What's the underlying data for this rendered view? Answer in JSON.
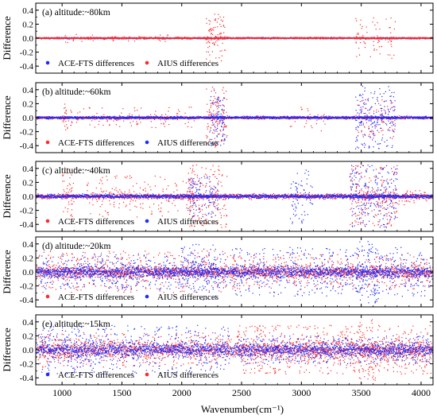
{
  "chart_data": {
    "type": "scatter",
    "xlabel": "Wavenumber(cm⁻¹)",
    "ylabel": "Difference",
    "xlim": [
      780,
      4100
    ],
    "ylim": [
      -0.5,
      0.5
    ],
    "x_ticks": [
      "1000",
      "1500",
      "2000",
      "2500",
      "3000",
      "3500",
      "4000"
    ],
    "y_ticks": [
      "0.4",
      "0.2",
      "0.0",
      "-0.2",
      "-0.4"
    ],
    "colors": {
      "red": "#ff2a2a",
      "blue": "#1e2bff"
    },
    "panels": [
      {
        "label": "(a) altitude:~80km",
        "front": "red",
        "legend": [
          {
            "name": "ACE-FTS differences",
            "color": "blue"
          },
          {
            "name": "AIUS differences",
            "color": "red"
          }
        ],
        "red_band_amp": 0.018,
        "blue_band_amp": 0.015,
        "features": [
          {
            "x": [
              1020,
              1060
            ],
            "color": "red",
            "level": 0.08,
            "density": 0.4
          },
          {
            "x": [
              2200,
              2360
            ],
            "color": "red",
            "level": 0.35,
            "density": 2.5
          },
          {
            "x": [
              3450,
              3780
            ],
            "color": "red",
            "level": 0.3,
            "density": 0.9
          },
          {
            "x": [
              1000,
              2100
            ],
            "color": "red",
            "level": 0.06,
            "density": 0.15
          }
        ]
      },
      {
        "label": "(b) altitude:~60km",
        "front": "blue",
        "legend": [
          {
            "name": "ACE-FTS differences",
            "color": "red"
          },
          {
            "name": "AIUS differences",
            "color": "blue"
          }
        ],
        "red_band_amp": 0.03,
        "blue_band_amp": 0.025,
        "features": [
          {
            "x": [
              1000,
              1080
            ],
            "color": "red",
            "level": 0.2,
            "density": 2.0
          },
          {
            "x": [
              2200,
              2380
            ],
            "color": "red",
            "level": 0.45,
            "density": 3.0
          },
          {
            "x": [
              2230,
              2360
            ],
            "color": "blue",
            "level": 0.4,
            "density": 3.0
          },
          {
            "x": [
              3450,
              3780
            ],
            "color": "blue",
            "level": 0.45,
            "density": 2.5
          },
          {
            "x": [
              3450,
              3780
            ],
            "color": "red",
            "level": 0.3,
            "density": 1.2
          },
          {
            "x": [
              1100,
              2100
            ],
            "color": "red",
            "level": 0.15,
            "density": 0.5
          },
          {
            "x": [
              2900,
              3200
            ],
            "color": "red",
            "level": 0.2,
            "density": 0.4
          }
        ]
      },
      {
        "label": "(c) altitude:~40km",
        "front": "blue",
        "legend": [
          {
            "name": "ACE-FTS differences",
            "color": "red"
          },
          {
            "name": "AIUS differences",
            "color": "blue"
          }
        ],
        "red_band_amp": 0.05,
        "blue_band_amp": 0.04,
        "features": [
          {
            "x": [
              1000,
              1100
            ],
            "color": "red",
            "level": 0.4,
            "density": 2.5
          },
          {
            "x": [
              1200,
              2100
            ],
            "color": "red",
            "level": 0.3,
            "density": 0.9
          },
          {
            "x": [
              2050,
              2380
            ],
            "color": "red",
            "level": 0.45,
            "density": 2.5
          },
          {
            "x": [
              2050,
              2300
            ],
            "color": "blue",
            "level": 0.3,
            "density": 2.0
          },
          {
            "x": [
              2900,
              3100
            ],
            "color": "blue",
            "level": 0.4,
            "density": 1.5
          },
          {
            "x": [
              3400,
              3800
            ],
            "color": "red",
            "level": 0.45,
            "density": 2.5
          },
          {
            "x": [
              3400,
              3800
            ],
            "color": "blue",
            "level": 0.45,
            "density": 2.5
          },
          {
            "x": [
              3800,
              4080
            ],
            "color": "red",
            "level": 0.12,
            "density": 0.8
          }
        ]
      },
      {
        "label": "(d) altitude:~20km",
        "front": "blue",
        "legend": [
          {
            "name": "ACE-FTS differences",
            "color": "red"
          },
          {
            "name": "AIUS differences",
            "color": "blue"
          }
        ],
        "red_band_amp": 0.12,
        "blue_band_amp": 0.12,
        "features": [
          {
            "x": [
              800,
              2380
            ],
            "color": "blue",
            "level": 0.25,
            "density": 1.5
          },
          {
            "x": [
              800,
              2380
            ],
            "color": "red",
            "level": 0.3,
            "density": 1.2
          },
          {
            "x": [
              2400,
              4080
            ],
            "color": "blue",
            "level": 0.35,
            "density": 1.5
          },
          {
            "x": [
              2400,
              4080
            ],
            "color": "red",
            "level": 0.25,
            "density": 1.2
          },
          {
            "x": [
              3450,
              3650
            ],
            "color": "blue",
            "level": 0.45,
            "density": 2.0
          },
          {
            "x": [
              1990,
              2300
            ],
            "color": "blue",
            "level": 0.4,
            "density": 1.5
          }
        ]
      },
      {
        "label": "(e) altitude:~15km",
        "front": "blue",
        "legend": [
          {
            "name": "ACE-FTS differences",
            "color": "blue"
          },
          {
            "name": "AIUS differences",
            "color": "red"
          }
        ],
        "red_band_amp": 0.18,
        "blue_band_amp": 0.14,
        "features": [
          {
            "x": [
              800,
              2400
            ],
            "color": "blue",
            "level": 0.35,
            "density": 1.6
          },
          {
            "x": [
              800,
              2400
            ],
            "color": "red",
            "level": 0.25,
            "density": 1.0
          },
          {
            "x": [
              2450,
              4080
            ],
            "color": "red",
            "level": 0.35,
            "density": 2.0
          },
          {
            "x": [
              2450,
              4080
            ],
            "color": "blue",
            "level": 0.2,
            "density": 1.2
          },
          {
            "x": [
              3480,
              3620
            ],
            "color": "red",
            "level": 0.45,
            "density": 2.0
          }
        ]
      }
    ]
  }
}
